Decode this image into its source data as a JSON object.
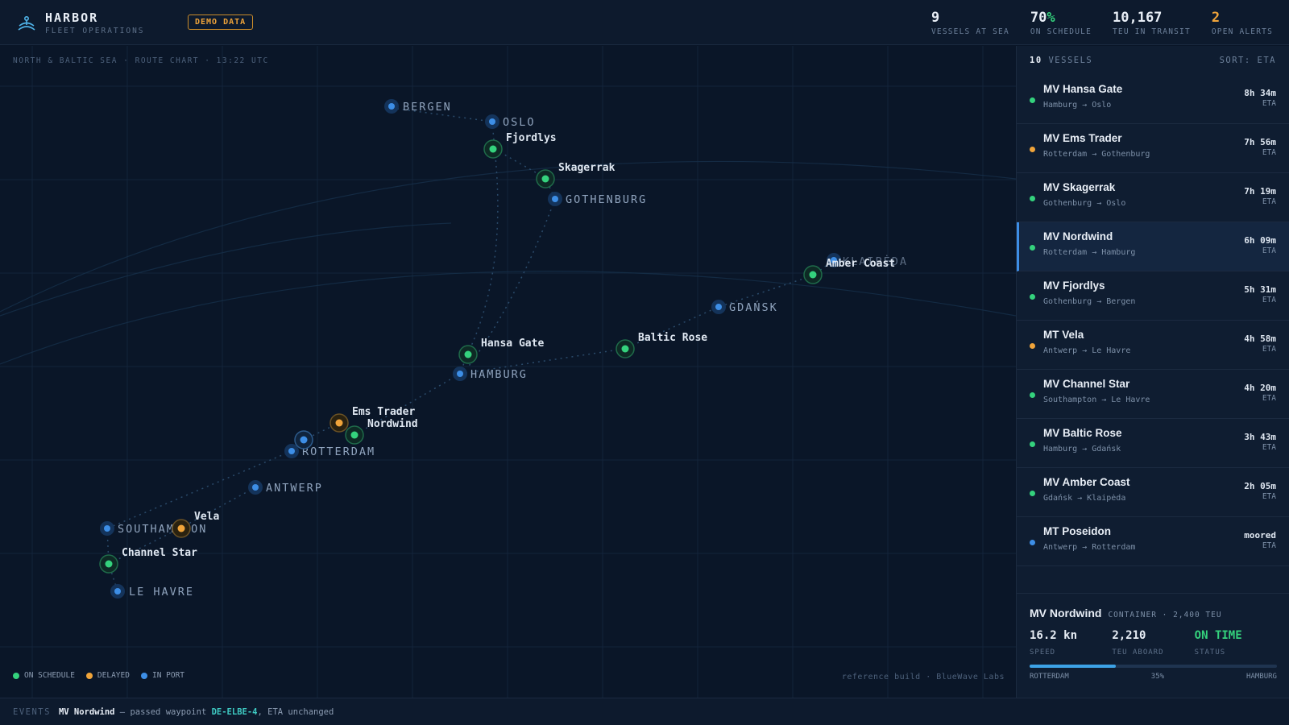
{
  "app": {
    "name": "HARBOR",
    "subtitle": "FLEET OPERATIONS",
    "badge": "DEMO DATA"
  },
  "stats": [
    {
      "value": "9",
      "label": "VESSELS AT SEA"
    },
    {
      "value": "70",
      "suffix": "%",
      "label": "ON SCHEDULE"
    },
    {
      "value": "10,167",
      "label": "TEU IN TRANSIT"
    },
    {
      "value": "2",
      "label": "OPEN ALERTS"
    }
  ],
  "map": {
    "caption": "NORTH & BALTIC SEA · ROUTE CHART · 13:22 UTC",
    "credit": "reference build · BlueWave Labs",
    "legend": [
      {
        "label": "ON SCHEDULE",
        "color": "#34d27d"
      },
      {
        "label": "DELAYED",
        "color": "#f0a43a"
      },
      {
        "label": "IN PORT",
        "color": "#3d8ee6"
      }
    ],
    "ports": [
      "BERGEN",
      "OSLO",
      "GOTHENBURG",
      "KLAIPĖDA",
      "GDAŃSK",
      "HAMBURG",
      "ROTTERDAM",
      "ANTWERP",
      "SOUTHAMPTON",
      "LE HAVRE"
    ],
    "ships": [
      {
        "name": "Fjordlys",
        "status": "on-schedule"
      },
      {
        "name": "Skagerrak",
        "status": "on-schedule"
      },
      {
        "name": "Amber Coast",
        "status": "on-schedule"
      },
      {
        "name": "Hansa Gate",
        "status": "on-schedule"
      },
      {
        "name": "Baltic Rose",
        "status": "on-schedule"
      },
      {
        "name": "Ems Trader",
        "status": "delayed"
      },
      {
        "name": "Nordwind",
        "status": "on-schedule"
      },
      {
        "name": "Vela",
        "status": "delayed"
      },
      {
        "name": "Channel Star",
        "status": "on-schedule"
      },
      {
        "name": "Poseidon",
        "status": "in-port"
      }
    ]
  },
  "sidebar": {
    "count": "10",
    "count_label": "VESSELS",
    "sort": "SORT: ETA",
    "vessels": [
      {
        "name": "MV Hansa Gate",
        "route": "Hamburg → Oslo",
        "eta": "8h 34m",
        "eta_label": "ETA",
        "status_color": "#34d27d"
      },
      {
        "name": "MV Ems Trader",
        "route": "Rotterdam → Gothenburg",
        "eta": "7h 56m",
        "eta_label": "ETA",
        "status_color": "#f0a43a"
      },
      {
        "name": "MV Skagerrak",
        "route": "Gothenburg → Oslo",
        "eta": "7h 19m",
        "eta_label": "ETA",
        "status_color": "#34d27d"
      },
      {
        "name": "MV Nordwind",
        "route": "Rotterdam → Hamburg",
        "eta": "6h 09m",
        "eta_label": "ETA",
        "status_color": "#34d27d"
      },
      {
        "name": "MV Fjordlys",
        "route": "Gothenburg → Bergen",
        "eta": "5h 31m",
        "eta_label": "ETA",
        "status_color": "#34d27d"
      },
      {
        "name": "MT Vela",
        "route": "Antwerp → Le Havre",
        "eta": "4h 58m",
        "eta_label": "ETA",
        "status_color": "#f0a43a"
      },
      {
        "name": "MV Channel Star",
        "route": "Southampton → Le Havre",
        "eta": "4h 20m",
        "eta_label": "ETA",
        "status_color": "#34d27d"
      },
      {
        "name": "MV Baltic Rose",
        "route": "Hamburg → Gdańsk",
        "eta": "3h 43m",
        "eta_label": "ETA",
        "status_color": "#34d27d"
      },
      {
        "name": "MV Amber Coast",
        "route": "Gdańsk → Klaipėda",
        "eta": "2h 05m",
        "eta_label": "ETA",
        "status_color": "#34d27d"
      },
      {
        "name": "MT Poseidon",
        "route": "Antwerp → Rotterdam",
        "eta": "moored",
        "eta_label": "ETA",
        "status_color": "#3d8ee6"
      }
    ]
  },
  "detail": {
    "name": "MV Nordwind",
    "type": "CONTAINER · 2,400 TEU",
    "speed": "16.2 kn",
    "speed_label": "SPEED",
    "teu": "2,210",
    "teu_label": "TEU ABOARD",
    "status": "ON TIME",
    "status_label": "STATUS",
    "progress": 0.35,
    "progress_text": "35%",
    "from": "ROTTERDAM",
    "to": "HAMBURG"
  },
  "events": {
    "label": "EVENTS",
    "vessel": "MV Nordwind",
    "text_before": " — passed waypoint ",
    "waypoint": "DE-ELBE-4",
    "text_after": ", ETA unchanged"
  }
}
